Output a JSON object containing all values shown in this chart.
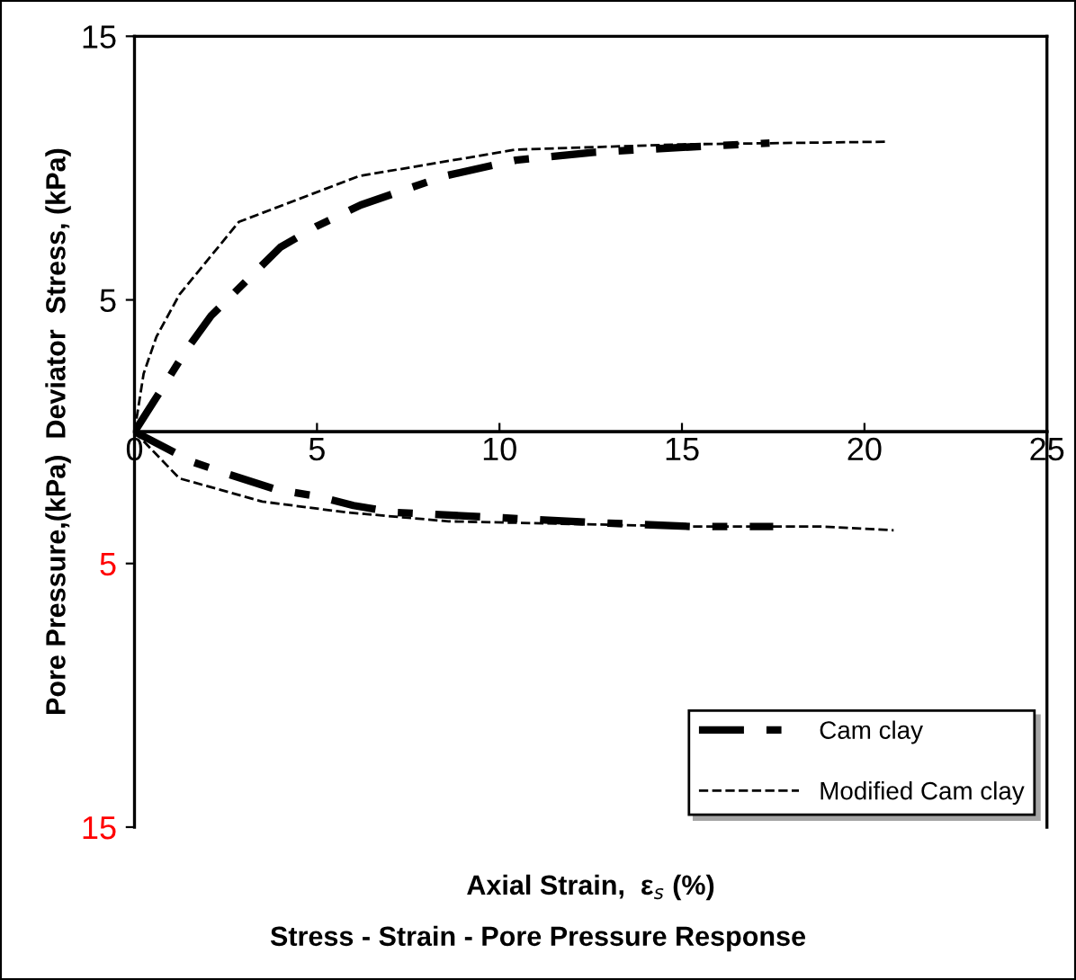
{
  "chart_data": {
    "type": "line",
    "title": "Stress - Strain - Pore Pressure Response",
    "xlabel": "Axial Strain,  ε$_{s}$ (%)",
    "ylabel": "Pore Pressure,(kPa)  Deviator  Stress, (kPa)",
    "xlim": [
      0,
      25
    ],
    "xticks": [
      0,
      5,
      10,
      15,
      20,
      25
    ],
    "ylim": [
      -15,
      15
    ],
    "yticks": [
      {
        "value": 15,
        "label": "15"
      },
      {
        "value": 5,
        "label": "5"
      },
      {
        "value": -5,
        "label": "5"
      },
      {
        "value": -15,
        "label": "15"
      }
    ],
    "grid": false,
    "legend": "bottom right",
    "marker": "none",
    "series": [
      {
        "name": "Cam clay",
        "color": "#000000",
        "line_style": "dashed",
        "x": [
          0,
          0.83,
          1.4,
          2.1,
          4.0,
          5.0,
          6.2,
          8.5,
          10.45,
          12.6,
          15.2,
          17.4
        ],
        "values": [
          0,
          1.8,
          3.06,
          4.4,
          7.0,
          7.8,
          8.6,
          9.7,
          10.3,
          10.6,
          10.8,
          10.95
        ]
      },
      {
        "name": "Modified Cam clay",
        "color": "#000000",
        "line_style": "dashed",
        "x": [
          0,
          0.25,
          0.6,
          1.23,
          2.86,
          6.16,
          10.45,
          15,
          20.6
        ],
        "values": [
          0,
          2.2,
          3.6,
          5.2,
          7.96,
          9.7,
          10.7,
          10.9,
          11.0
        ]
      },
      {
        "color": "#000000",
        "line_style": "dashed",
        "x": [
          0,
          1.6,
          2.55,
          3.9,
          5.0,
          6.0,
          7.1,
          10.1,
          13.0,
          15.3,
          17.5
        ],
        "values": [
          0,
          -1.15,
          -1.6,
          -2.2,
          -2.45,
          -2.8,
          -3.06,
          -3.27,
          -3.47,
          -3.6,
          -3.6
        ]
      },
      {
        "color": "#000000",
        "line_style": "dashed",
        "x": [
          0,
          1.23,
          3.5,
          5.8,
          8.6,
          15.3,
          18.9,
          20.8
        ],
        "values": [
          0,
          -1.77,
          -2.65,
          -3.06,
          -3.4,
          -3.6,
          -3.6,
          -3.74
        ]
      }
    ]
  }
}
